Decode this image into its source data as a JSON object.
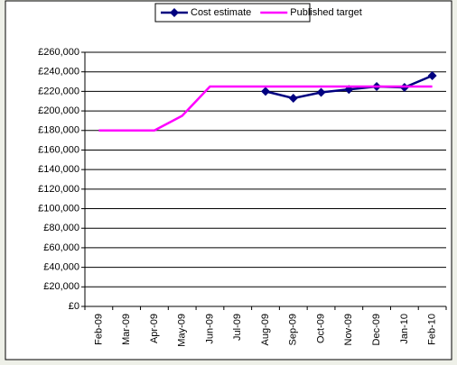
{
  "chart_data": {
    "type": "line",
    "categories": [
      "Feb-09",
      "Mar-09",
      "Apr-09",
      "May-09",
      "Jun-09",
      "Jul-09",
      "Aug-09",
      "Sep-09",
      "Oct-09",
      "Nov-09",
      "Dec-09",
      "Jan-10",
      "Feb-10"
    ],
    "series": [
      {
        "name": "Cost estimate",
        "color": "#000080",
        "marker": "diamond",
        "values": [
          null,
          null,
          null,
          null,
          null,
          null,
          220000,
          213000,
          219000,
          222000,
          225000,
          224000,
          236000
        ]
      },
      {
        "name": "Published target",
        "color": "#ff00ff",
        "values": [
          180000,
          180000,
          180000,
          195000,
          225000,
          225000,
          225000,
          225000,
          225000,
          225000,
          225000,
          225000,
          225000
        ]
      }
    ],
    "ylim": [
      0,
      260000
    ],
    "yticks": [
      {
        "value": 0,
        "label": "£0"
      },
      {
        "value": 20000,
        "label": "£20,000"
      },
      {
        "value": 40000,
        "label": "£40,000"
      },
      {
        "value": 60000,
        "label": "£60,000"
      },
      {
        "value": 80000,
        "label": "£80,000"
      },
      {
        "value": 100000,
        "label": "£100,000"
      },
      {
        "value": 120000,
        "label": "£120,000"
      },
      {
        "value": 140000,
        "label": "£140,000"
      },
      {
        "value": 160000,
        "label": "£160,000"
      },
      {
        "value": 180000,
        "label": "£180,000"
      },
      {
        "value": 200000,
        "label": "£200,000"
      },
      {
        "value": 220000,
        "label": "£220,000"
      },
      {
        "value": 240000,
        "label": "£240,000"
      },
      {
        "value": 260000,
        "label": "£260,000"
      }
    ],
    "grid": true,
    "legend": "top"
  }
}
